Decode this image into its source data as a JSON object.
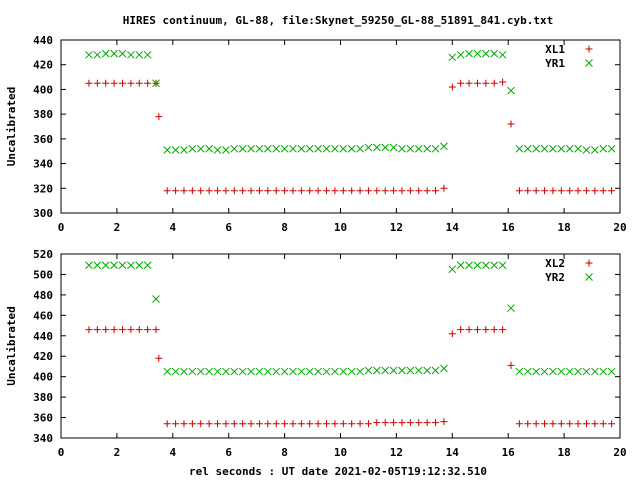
{
  "title": "HIRES continuum, GL-88, file:Skynet_59250_GL-88_51891_841.cyb.txt",
  "xlabel": "rel seconds : UT date 2021-02-05T19:12:32.510",
  "chart_data": [
    {
      "type": "scatter",
      "ylabel": "Uncalibrated",
      "xlim": [
        0,
        20
      ],
      "ylim": [
        300,
        440
      ],
      "xticks": [
        "0",
        "2",
        "4",
        "6",
        "8",
        "10",
        "12",
        "14",
        "16",
        "18",
        "20"
      ],
      "yticks": [
        "300",
        "320",
        "340",
        "360",
        "380",
        "400",
        "420",
        "440"
      ],
      "legend_position": "top-right",
      "series": [
        {
          "name": "XL1",
          "marker": "plus",
          "color": "#cc0000",
          "x": [
            1.0,
            1.3,
            1.6,
            1.9,
            2.2,
            2.5,
            2.8,
            3.1,
            3.4,
            3.5,
            3.8,
            4.1,
            4.4,
            4.7,
            5.0,
            5.3,
            5.6,
            5.9,
            6.2,
            6.5,
            6.8,
            7.1,
            7.4,
            7.7,
            8.0,
            8.3,
            8.6,
            8.9,
            9.2,
            9.5,
            9.8,
            10.1,
            10.4,
            10.7,
            11.0,
            11.3,
            11.6,
            11.9,
            12.2,
            12.5,
            12.8,
            13.1,
            13.4,
            13.7,
            14.0,
            14.3,
            14.6,
            14.9,
            15.2,
            15.5,
            15.8,
            16.1,
            16.4,
            16.7,
            17.0,
            17.3,
            17.6,
            17.9,
            18.2,
            18.5,
            18.8,
            19.1,
            19.4,
            19.7
          ],
          "y": [
            405,
            405,
            405,
            405,
            405,
            405,
            405,
            405,
            405,
            378,
            318,
            318,
            318,
            318,
            318,
            318,
            318,
            318,
            318,
            318,
            318,
            318,
            318,
            318,
            318,
            318,
            318,
            318,
            318,
            318,
            318,
            318,
            318,
            318,
            318,
            318,
            318,
            318,
            318,
            318,
            318,
            318,
            318,
            320,
            402,
            405,
            405,
            405,
            405,
            405,
            406,
            372,
            318,
            318,
            318,
            318,
            318,
            318,
            318,
            318,
            318,
            318,
            318,
            318
          ]
        },
        {
          "name": "YR1",
          "marker": "cross",
          "color": "#00aa00",
          "x": [
            1.0,
            1.3,
            1.6,
            1.9,
            2.2,
            2.5,
            2.8,
            3.1,
            3.4,
            3.8,
            4.1,
            4.4,
            4.7,
            5.0,
            5.3,
            5.6,
            5.9,
            6.2,
            6.5,
            6.8,
            7.1,
            7.4,
            7.7,
            8.0,
            8.3,
            8.6,
            8.9,
            9.2,
            9.5,
            9.8,
            10.1,
            10.4,
            10.7,
            11.0,
            11.3,
            11.6,
            11.9,
            12.2,
            12.5,
            12.8,
            13.1,
            13.4,
            13.7,
            14.0,
            14.3,
            14.6,
            14.9,
            15.2,
            15.5,
            15.8,
            16.1,
            16.4,
            16.7,
            17.0,
            17.3,
            17.6,
            17.9,
            18.2,
            18.5,
            18.8,
            19.1,
            19.4,
            19.7
          ],
          "y": [
            428,
            428,
            429,
            429,
            429,
            428,
            428,
            428,
            405,
            351,
            351,
            351,
            352,
            352,
            352,
            351,
            351,
            352,
            352,
            352,
            352,
            352,
            352,
            352,
            352,
            352,
            352,
            352,
            352,
            352,
            352,
            352,
            352,
            353,
            353,
            353,
            353,
            352,
            352,
            352,
            352,
            352,
            354,
            426,
            428,
            429,
            429,
            429,
            429,
            428,
            399,
            352,
            352,
            352,
            352,
            352,
            352,
            352,
            352,
            351,
            351,
            352,
            352
          ]
        }
      ]
    },
    {
      "type": "scatter",
      "ylabel": "Uncalibrated",
      "xlim": [
        0,
        20
      ],
      "ylim": [
        340,
        520
      ],
      "xticks": [
        "0",
        "2",
        "4",
        "6",
        "8",
        "10",
        "12",
        "14",
        "16",
        "18",
        "20"
      ],
      "yticks": [
        "340",
        "360",
        "380",
        "400",
        "420",
        "440",
        "460",
        "480",
        "500",
        "520"
      ],
      "legend_position": "top-right",
      "series": [
        {
          "name": "XL2",
          "marker": "plus",
          "color": "#cc0000",
          "x": [
            1.0,
            1.3,
            1.6,
            1.9,
            2.2,
            2.5,
            2.8,
            3.1,
            3.4,
            3.5,
            3.8,
            4.1,
            4.4,
            4.7,
            5.0,
            5.3,
            5.6,
            5.9,
            6.2,
            6.5,
            6.8,
            7.1,
            7.4,
            7.7,
            8.0,
            8.3,
            8.6,
            8.9,
            9.2,
            9.5,
            9.8,
            10.1,
            10.4,
            10.7,
            11.0,
            11.3,
            11.6,
            11.9,
            12.2,
            12.5,
            12.8,
            13.1,
            13.4,
            13.7,
            14.0,
            14.3,
            14.6,
            14.9,
            15.2,
            15.5,
            15.8,
            16.1,
            16.4,
            16.7,
            17.0,
            17.3,
            17.6,
            17.9,
            18.2,
            18.5,
            18.8,
            19.1,
            19.4,
            19.7
          ],
          "y": [
            446,
            446,
            446,
            446,
            446,
            446,
            446,
            446,
            446,
            418,
            354,
            354,
            354,
            354,
            354,
            354,
            354,
            354,
            354,
            354,
            354,
            354,
            354,
            354,
            354,
            354,
            354,
            354,
            354,
            354,
            354,
            354,
            354,
            354,
            354,
            355,
            355,
            355,
            355,
            355,
            355,
            355,
            355,
            356,
            442,
            446,
            446,
            446,
            446,
            446,
            446,
            411,
            354,
            354,
            354,
            354,
            354,
            354,
            354,
            354,
            354,
            354,
            354,
            354
          ]
        },
        {
          "name": "YR2",
          "marker": "cross",
          "color": "#00aa00",
          "x": [
            1.0,
            1.3,
            1.6,
            1.9,
            2.2,
            2.5,
            2.8,
            3.1,
            3.4,
            3.8,
            4.1,
            4.4,
            4.7,
            5.0,
            5.3,
            5.6,
            5.9,
            6.2,
            6.5,
            6.8,
            7.1,
            7.4,
            7.7,
            8.0,
            8.3,
            8.6,
            8.9,
            9.2,
            9.5,
            9.8,
            10.1,
            10.4,
            10.7,
            11.0,
            11.3,
            11.6,
            11.9,
            12.2,
            12.5,
            12.8,
            13.1,
            13.4,
            13.7,
            14.0,
            14.3,
            14.6,
            14.9,
            15.2,
            15.5,
            15.8,
            16.1,
            16.4,
            16.7,
            17.0,
            17.3,
            17.6,
            17.9,
            18.2,
            18.5,
            18.8,
            19.1,
            19.4,
            19.7
          ],
          "y": [
            509,
            509,
            509,
            509,
            509,
            509,
            509,
            509,
            476,
            405,
            405,
            405,
            405,
            405,
            405,
            405,
            405,
            405,
            405,
            405,
            405,
            405,
            405,
            405,
            405,
            405,
            405,
            405,
            405,
            405,
            405,
            405,
            405,
            406,
            406,
            406,
            406,
            406,
            406,
            406,
            406,
            406,
            408,
            505,
            509,
            509,
            509,
            509,
            509,
            509,
            467,
            405,
            405,
            405,
            405,
            405,
            405,
            405,
            405,
            405,
            405,
            405,
            405
          ]
        }
      ]
    }
  ]
}
